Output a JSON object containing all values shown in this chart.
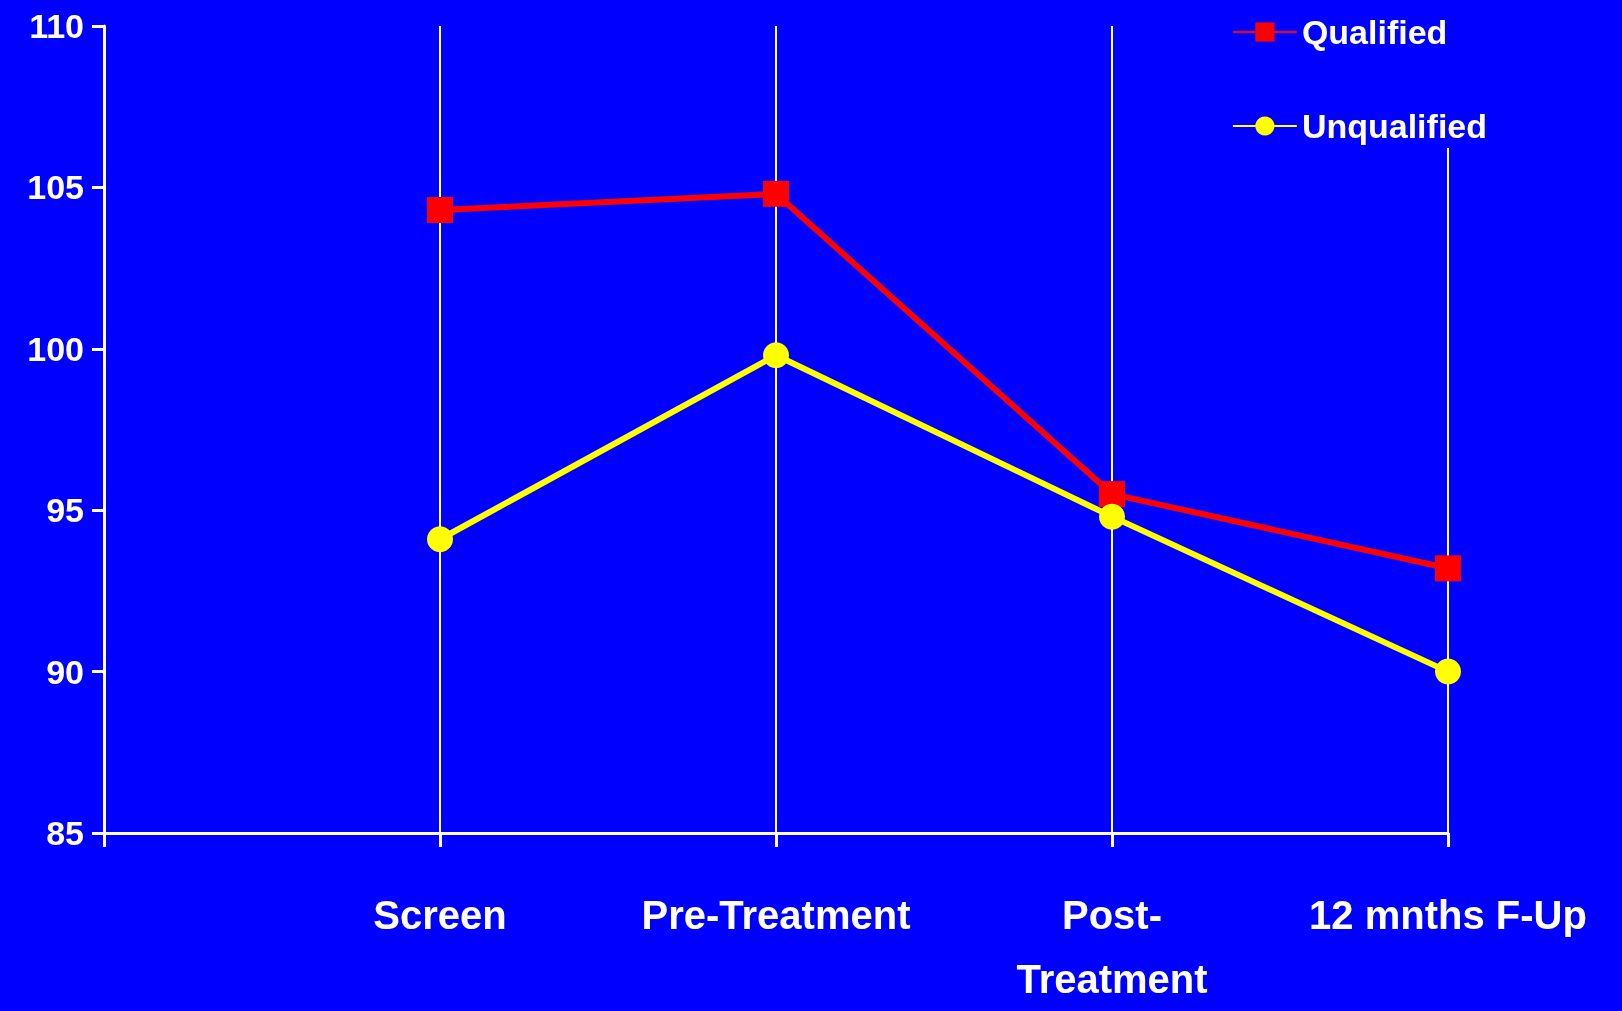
{
  "chart_data": {
    "type": "line",
    "categories": [
      null,
      "Screen",
      "Pre-Treatment",
      "Post-\nTreatment",
      "12 mnths F-Up"
    ],
    "series": [
      {
        "name": "Qualified",
        "color": "#ff0000",
        "marker": "square",
        "values": [
          null,
          104.3,
          104.8,
          95.5,
          93.2
        ]
      },
      {
        "name": "Unqualified",
        "color": "#ffff00",
        "marker": "circle",
        "values": [
          null,
          94.1,
          99.8,
          94.8,
          90.0
        ]
      }
    ],
    "ylim": [
      85,
      110
    ],
    "yticks": [
      85,
      90,
      95,
      100,
      105,
      110
    ],
    "grid": "x",
    "legend": "top right",
    "line_style": "solid"
  }
}
